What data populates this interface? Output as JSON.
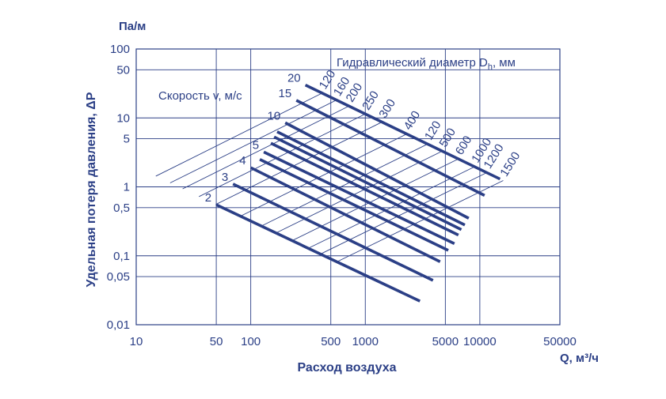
{
  "chart_data": {
    "type": "line",
    "x_scale": "log",
    "y_scale": "log",
    "xlim": [
      10,
      50000
    ],
    "ylim": [
      0.01,
      100
    ],
    "x_ticks": [
      {
        "value": 10,
        "label": "10"
      },
      {
        "value": 50,
        "label": "50"
      },
      {
        "value": 100,
        "label": "100"
      },
      {
        "value": 500,
        "label": "500"
      },
      {
        "value": 1000,
        "label": "1000"
      },
      {
        "value": 5000,
        "label": "5000"
      },
      {
        "value": 10000,
        "label": "10000"
      },
      {
        "value": 50000,
        "label": "50000"
      }
    ],
    "y_ticks": [
      {
        "value": 0.01,
        "label": "0,01"
      },
      {
        "value": 0.05,
        "label": "0,05"
      },
      {
        "value": 0.1,
        "label": "0,1"
      },
      {
        "value": 0.5,
        "label": "0,5"
      },
      {
        "value": 1,
        "label": "1"
      },
      {
        "value": 5,
        "label": "5"
      },
      {
        "value": 10,
        "label": "10"
      },
      {
        "value": 50,
        "label": "50"
      },
      {
        "value": 100,
        "label": "100"
      }
    ],
    "y_unit": "Па/м",
    "x_unit": "Q, м³/ч",
    "ylabel": "Удельная потеря давления, ΔP",
    "xlabel": "Расход воздуха",
    "velocity_caption": "Скорость v, м/с",
    "diameter_caption": "Гидравлический диаметр D",
    "diameter_caption_sub": "h",
    "diameter_caption_suffix": ", мм",
    "grid": true,
    "colors": {
      "line": "#2b3f86",
      "grid": "#2b3f86",
      "text": "#2b3f86"
    },
    "velocity_lines": [
      {
        "label": "2",
        "start": [
          50,
          0.55
        ],
        "end": [
          3000,
          0.022
        ]
      },
      {
        "label": "3",
        "start": [
          70,
          1.1
        ],
        "end": [
          3900,
          0.044
        ]
      },
      {
        "label": "4",
        "start": [
          100,
          1.9
        ],
        "end": [
          4500,
          0.082
        ]
      },
      {
        "label": "",
        "start": [
          120,
          2.5
        ],
        "end": [
          5300,
          0.12
        ]
      },
      {
        "label": "5",
        "start": [
          130,
          3.2
        ],
        "end": [
          6000,
          0.15
        ]
      },
      {
        "label": "",
        "start": [
          150,
          4.3
        ],
        "end": [
          6500,
          0.2
        ]
      },
      {
        "label": "",
        "start": [
          160,
          5.3
        ],
        "end": [
          6900,
          0.24
        ]
      },
      {
        "label": "",
        "start": [
          170,
          6.3
        ],
        "end": [
          7400,
          0.28
        ]
      },
      {
        "label": "10",
        "start": [
          200,
          8.5
        ],
        "end": [
          8000,
          0.35
        ]
      },
      {
        "label": "15",
        "start": [
          250,
          18
        ],
        "end": [
          11000,
          0.75
        ]
      },
      {
        "label": "20",
        "start": [
          300,
          30
        ],
        "end": [
          15000,
          1.3
        ]
      }
    ],
    "diameter_lines": [
      {
        "label": "120",
        "top_x": 420
      },
      {
        "label": "160",
        "top_x": 560
      },
      {
        "label": "200",
        "top_x": 720
      },
      {
        "label": "250",
        "top_x": 1000
      },
      {
        "label": "300",
        "top_x": 1400
      },
      {
        "label": "400",
        "top_x": 2300
      },
      {
        "label": "120",
        "top_x": 3500
      },
      {
        "label": "500",
        "top_x": 4700
      },
      {
        "label": "600",
        "top_x": 6500
      },
      {
        "label": "1000",
        "top_x": 9000
      },
      {
        "label": "1200",
        "top_x": 11500
      },
      {
        "label": "1500",
        "top_x": 16000
      }
    ]
  }
}
